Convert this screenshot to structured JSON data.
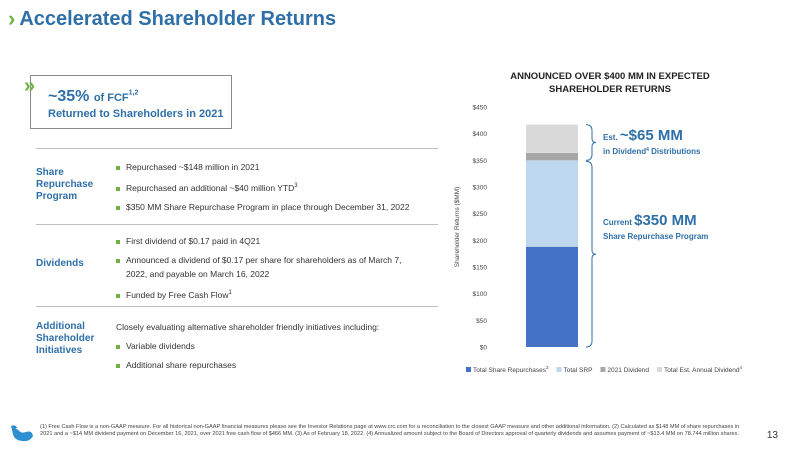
{
  "header": {
    "title": "Accelerated Shareholder Returns"
  },
  "fcf": {
    "pct": "~35%",
    "of": "of FCF",
    "sup": "1,2",
    "sub": "Returned to Shareholders in 2021"
  },
  "sections": [
    {
      "label_lines": [
        "Share",
        "Repurchase",
        "Program"
      ],
      "bullets": [
        "Repurchased ~$148 million in 2021",
        "Repurchased an additional ~$40 million YTD",
        "$350 MM Share Repurchase Program in place through December 31, 2022"
      ],
      "sups": [
        "",
        "3",
        ""
      ]
    },
    {
      "label_lines": [
        "Dividends"
      ],
      "bullets": [
        "First dividend of $0.17 paid in 4Q21",
        "Announced a dividend of $0.17 per share for shareholders as of March 7,",
        "2022, and payable on March 16, 2022",
        "Funded by Free Cash Flow"
      ],
      "sups": [
        "",
        "",
        "",
        "1"
      ]
    },
    {
      "label_lines": [
        "Additional",
        "Shareholder",
        "Initiatives"
      ],
      "intro": "Closely evaluating alternative shareholder friendly initiatives including:",
      "bullets": [
        "Variable dividends",
        "Additional share repurchases"
      ]
    }
  ],
  "chart_data": {
    "type": "bar",
    "title_lines": [
      "ANNOUNCED OVER $400 MM IN EXPECTED",
      "SHAREHOLDER RETURNS"
    ],
    "ylabel": "Shareholder Returns ($MM)",
    "ylim": [
      0,
      450
    ],
    "ticks": [
      "$0",
      "$50",
      "$100",
      "$150",
      "$200",
      "$250",
      "$300",
      "$350",
      "$400",
      "$450"
    ],
    "series": [
      {
        "name": "Total Share Repurchases",
        "value": 188,
        "color": "#4472c4",
        "sup": "3"
      },
      {
        "name": "Total SRP",
        "value": 162,
        "color": "#bdd7ee",
        "sup": ""
      },
      {
        "name": "2021 Dividend",
        "value": 14,
        "color": "#a6a6a6",
        "sup": ""
      },
      {
        "name": "Total Est. Annual Dividend",
        "value": 53,
        "color": "#d9d9d9",
        "sup": "4"
      }
    ],
    "annotations": [
      {
        "prefix": "Est.",
        "big": "~$65 MM",
        "sub": "in Dividend",
        "sub_sup": "4",
        "sub_tail": " Distributions"
      },
      {
        "prefix": "Current",
        "big": "$350 MM",
        "sub": "Share Repurchase Program",
        "sub_sup": "",
        "sub_tail": ""
      }
    ]
  },
  "footer": {
    "footnote": "(1) Free Cash Flow is a non-GAAP measure. For all historical non-GAAP financial measures please see the Investor Relations page at www.crc.com for a reconciliation to the closest GAAP measure and other additional information. (2) Calculated as $148 MM of share repurchases in 2021 and a ~$14 MM dividend payment on December 16, 2021, over 2021 free cash flow of $466 MM. (3) As of February 18, 2022. (4) Annualized amount subject to the Board of Directors approval of quarterly dividends and assumes payment of ~$13.4 MM on 78.744 million shares.",
    "page": "13"
  },
  "colors": {
    "brand_blue": "#2e6fa8",
    "accent_green": "#6db33f"
  }
}
